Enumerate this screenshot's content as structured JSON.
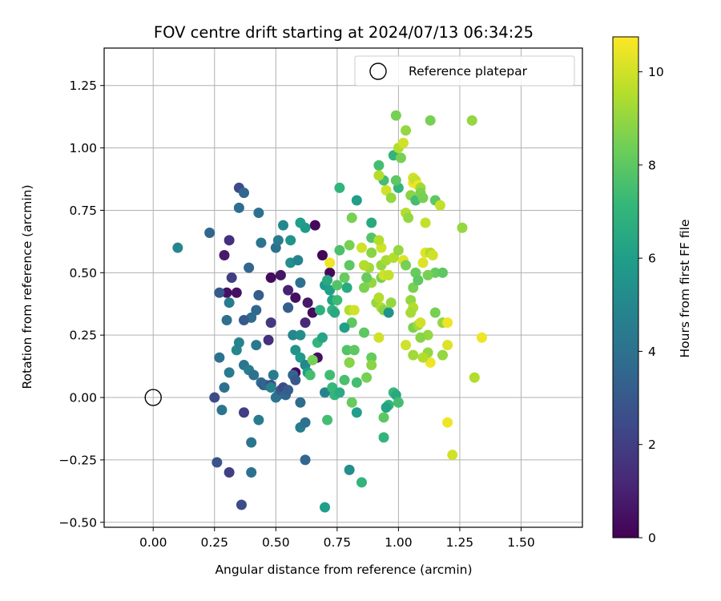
{
  "chart_data": {
    "type": "scatter",
    "title": "FOV centre drift starting at 2024/07/13 06:34:25",
    "xlabel": "Angular distance from reference (arcmin)",
    "ylabel": "Rotation from reference (arcmin)",
    "xlim": [
      -0.2,
      1.75
    ],
    "ylim": [
      -0.52,
      1.4
    ],
    "xticks": [
      0.0,
      0.25,
      0.5,
      0.75,
      1.0,
      1.25,
      1.5
    ],
    "xtick_labels": [
      "0.00",
      "0.25",
      "0.50",
      "0.75",
      "1.00",
      "1.25",
      "1.50"
    ],
    "yticks": [
      -0.5,
      -0.25,
      0.0,
      0.25,
      0.5,
      0.75,
      1.0,
      1.25
    ],
    "ytick_labels": [
      "−0.50",
      "−0.25",
      "0.00",
      "0.25",
      "0.50",
      "0.75",
      "1.00",
      "1.25"
    ],
    "grid": true,
    "legend": {
      "position": "top-right",
      "label": "Reference platepar"
    },
    "reference_point": {
      "x": 0.0,
      "y": 0.0
    },
    "colorbar": {
      "label": "Hours from first FF file",
      "colormap": "viridis",
      "min": 0,
      "max": 10.75,
      "ticks": [
        0,
        2,
        4,
        6,
        8,
        10
      ],
      "tick_labels": [
        "0",
        "2",
        "4",
        "6",
        "8",
        "10"
      ]
    },
    "colormap_stops": [
      "#440154",
      "#482878",
      "#3e4989",
      "#31688e",
      "#26828e",
      "#1f9e89",
      "#35b779",
      "#6ece58",
      "#b5de2b",
      "#fde725"
    ],
    "points": [
      [
        0.34,
        0.42,
        0.5
      ],
      [
        0.35,
        0.84,
        2.5
      ],
      [
        0.37,
        0.82,
        3.5
      ],
      [
        0.31,
        0.63,
        1.5
      ],
      [
        0.29,
        0.57,
        0.8
      ],
      [
        0.32,
        0.48,
        2.0
      ],
      [
        0.3,
        0.42,
        0.5
      ],
      [
        0.48,
        0.48,
        0.3
      ],
      [
        0.52,
        0.49,
        0.6
      ],
      [
        0.55,
        0.43,
        1.0
      ],
      [
        0.58,
        0.4,
        0.4
      ],
      [
        0.63,
        0.38,
        0.7
      ],
      [
        0.65,
        0.34,
        0.3
      ],
      [
        0.66,
        0.69,
        0.2
      ],
      [
        0.69,
        0.57,
        0.1
      ],
      [
        0.72,
        0.5,
        0.2
      ],
      [
        0.67,
        0.16,
        0.4
      ],
      [
        0.58,
        0.1,
        0.3
      ],
      [
        0.62,
        0.3,
        1.2
      ],
      [
        0.47,
        0.23,
        1.5
      ],
      [
        0.48,
        0.3,
        1.8
      ],
      [
        0.37,
        -0.06,
        2.0
      ],
      [
        0.31,
        -0.3,
        2.0
      ],
      [
        0.25,
        0.0,
        2.5
      ],
      [
        0.26,
        -0.26,
        2.8
      ],
      [
        0.36,
        -0.43,
        2.5
      ],
      [
        0.27,
        0.42,
        3.0
      ],
      [
        0.23,
        0.66,
        3.5
      ],
      [
        0.35,
        0.76,
        3.8
      ],
      [
        0.43,
        0.74,
        4.0
      ],
      [
        0.44,
        0.62,
        4.2
      ],
      [
        0.39,
        0.52,
        3.5
      ],
      [
        0.43,
        0.41,
        3.2
      ],
      [
        0.42,
        0.35,
        3.6
      ],
      [
        0.4,
        0.32,
        3.8
      ],
      [
        0.37,
        0.31,
        3.0
      ],
      [
        0.3,
        0.31,
        4.0
      ],
      [
        0.31,
        0.38,
        4.5
      ],
      [
        0.27,
        0.16,
        4.0
      ],
      [
        0.28,
        -0.05,
        4.2
      ],
      [
        0.29,
        0.04,
        4.0
      ],
      [
        0.31,
        0.1,
        4.5
      ],
      [
        0.34,
        0.19,
        5.0
      ],
      [
        0.35,
        0.22,
        4.8
      ],
      [
        0.37,
        0.13,
        4.2
      ],
      [
        0.39,
        0.11,
        4.6
      ],
      [
        0.41,
        0.09,
        4.0
      ],
      [
        0.42,
        0.21,
        4.3
      ],
      [
        0.44,
        0.06,
        3.8
      ],
      [
        0.45,
        0.05,
        3.0
      ],
      [
        0.46,
        0.05,
        3.5
      ],
      [
        0.48,
        0.05,
        2.5
      ],
      [
        0.49,
        0.09,
        4.5
      ],
      [
        0.5,
        0.0,
        4.2
      ],
      [
        0.51,
        0.01,
        4.0
      ],
      [
        0.52,
        0.03,
        3.0
      ],
      [
        0.53,
        0.04,
        2.5
      ],
      [
        0.54,
        0.01,
        3.5
      ],
      [
        0.55,
        0.03,
        3.2
      ],
      [
        0.57,
        0.09,
        3.5
      ],
      [
        0.58,
        0.07,
        3.0
      ],
      [
        0.6,
        -0.02,
        3.8
      ],
      [
        0.6,
        -0.12,
        4.5
      ],
      [
        0.62,
        -0.1,
        4.0
      ],
      [
        0.62,
        -0.25,
        3.5
      ],
      [
        0.4,
        -0.18,
        4.2
      ],
      [
        0.4,
        -0.3,
        4.0
      ],
      [
        0.43,
        -0.09,
        4.5
      ],
      [
        0.48,
        0.04,
        4.8
      ],
      [
        0.5,
        0.6,
        4.0
      ],
      [
        0.51,
        0.63,
        4.5
      ],
      [
        0.53,
        0.69,
        5.0
      ],
      [
        0.56,
        0.54,
        5.3
      ],
      [
        0.56,
        0.63,
        5.5
      ],
      [
        0.59,
        0.55,
        4.8
      ],
      [
        0.6,
        0.7,
        6.0
      ],
      [
        0.62,
        0.68,
        5.8
      ],
      [
        0.6,
        0.46,
        4.0
      ],
      [
        0.55,
        0.36,
        3.8
      ],
      [
        0.57,
        0.25,
        5.0
      ],
      [
        0.6,
        0.25,
        5.3
      ],
      [
        0.58,
        0.19,
        5.5
      ],
      [
        0.6,
        0.16,
        5.8
      ],
      [
        0.62,
        0.13,
        5.0
      ],
      [
        0.63,
        0.1,
        6.0
      ],
      [
        0.64,
        0.09,
        7.5
      ],
      [
        0.65,
        0.15,
        8.5
      ],
      [
        0.67,
        0.22,
        7.0
      ],
      [
        0.68,
        0.35,
        6.8
      ],
      [
        0.69,
        0.24,
        6.3
      ],
      [
        0.7,
        0.45,
        5.8
      ],
      [
        0.71,
        0.47,
        6.5
      ],
      [
        0.72,
        0.43,
        6.0
      ],
      [
        0.73,
        0.39,
        6.2
      ],
      [
        0.73,
        0.35,
        7.0
      ],
      [
        0.74,
        0.34,
        6.5
      ],
      [
        0.75,
        0.39,
        7.3
      ],
      [
        0.75,
        0.45,
        7.8
      ],
      [
        0.76,
        0.59,
        7.6
      ],
      [
        0.76,
        0.84,
        7.0
      ],
      [
        0.72,
        0.54,
        10.5
      ],
      [
        0.8,
        0.53,
        8.0
      ],
      [
        0.8,
        0.61,
        8.5
      ],
      [
        0.81,
        0.72,
        8.5
      ],
      [
        0.83,
        0.79,
        6.0
      ],
      [
        0.78,
        0.48,
        8.2
      ],
      [
        0.79,
        0.44,
        6.5
      ],
      [
        0.8,
        0.35,
        9.5
      ],
      [
        0.81,
        0.3,
        8.0
      ],
      [
        0.82,
        0.35,
        10.0
      ],
      [
        0.78,
        0.28,
        6.0
      ],
      [
        0.79,
        0.19,
        7.8
      ],
      [
        0.82,
        0.19,
        8.0
      ],
      [
        0.8,
        0.14,
        7.0
      ],
      [
        0.8,
        0.14,
        8.8
      ],
      [
        0.78,
        0.07,
        7.6
      ],
      [
        0.72,
        0.09,
        7.4
      ],
      [
        0.7,
        0.02,
        4.8
      ],
      [
        0.73,
        0.04,
        7.2
      ],
      [
        0.74,
        0.01,
        7.0
      ],
      [
        0.76,
        0.02,
        6.6
      ],
      [
        0.71,
        -0.09,
        7.5
      ],
      [
        0.81,
        -0.02,
        8.2
      ],
      [
        0.83,
        -0.06,
        6.0
      ],
      [
        0.8,
        -0.29,
        5.3
      ],
      [
        0.85,
        -0.34,
        7.0
      ],
      [
        0.7,
        -0.44,
        6.0
      ],
      [
        0.83,
        0.06,
        7.5
      ],
      [
        0.86,
        0.26,
        8.0
      ],
      [
        0.87,
        0.08,
        8.5
      ],
      [
        0.89,
        0.16,
        8.2
      ],
      [
        0.89,
        0.13,
        8.8
      ],
      [
        0.91,
        0.38,
        9.0
      ],
      [
        0.92,
        0.4,
        9.5
      ],
      [
        0.93,
        0.36,
        9.5
      ],
      [
        0.94,
        0.35,
        8.8
      ],
      [
        0.96,
        0.34,
        5.5
      ],
      [
        0.92,
        0.24,
        10.0
      ],
      [
        0.89,
        0.46,
        9.0
      ],
      [
        0.88,
        0.52,
        9.2
      ],
      [
        0.86,
        0.53,
        9.5
      ],
      [
        0.87,
        0.48,
        8.2
      ],
      [
        0.85,
        0.6,
        10.0
      ],
      [
        0.86,
        0.44,
        8.6
      ],
      [
        0.89,
        0.58,
        8.8
      ],
      [
        0.89,
        0.64,
        7.8
      ],
      [
        0.89,
        0.7,
        6.5
      ],
      [
        0.93,
        0.6,
        10.0
      ],
      [
        0.92,
        0.63,
        9.5
      ],
      [
        0.93,
        0.53,
        9.0
      ],
      [
        0.95,
        0.55,
        9.3
      ],
      [
        0.93,
        0.48,
        8.5
      ],
      [
        0.94,
        0.49,
        10.0
      ],
      [
        0.96,
        0.49,
        9.8
      ],
      [
        0.97,
        0.38,
        9.0
      ],
      [
        0.98,
        0.02,
        7.2
      ],
      [
        0.99,
        0.01,
        6.5
      ],
      [
        1.0,
        -0.02,
        7.5
      ],
      [
        0.96,
        -0.03,
        7.0
      ],
      [
        0.95,
        -0.04,
        6.2
      ],
      [
        0.94,
        -0.08,
        8.0
      ],
      [
        0.94,
        -0.16,
        7.0
      ],
      [
        0.98,
        0.56,
        9.5
      ],
      [
        1.0,
        0.59,
        9.0
      ],
      [
        1.02,
        0.55,
        10.2
      ],
      [
        1.03,
        0.53,
        8.5
      ],
      [
        1.0,
        0.84,
        7.0
      ],
      [
        0.95,
        0.83,
        10.0
      ],
      [
        0.97,
        0.8,
        9.0
      ],
      [
        0.99,
        0.87,
        8.0
      ],
      [
        0.94,
        0.87,
        7.5
      ],
      [
        0.92,
        0.93,
        7.5
      ],
      [
        0.92,
        0.89,
        9.5
      ],
      [
        0.98,
        0.97,
        7.0
      ],
      [
        0.99,
        1.13,
        8.5
      ],
      [
        1.0,
        1.0,
        9.5
      ],
      [
        1.01,
        0.96,
        8.5
      ],
      [
        1.02,
        1.02,
        10.0
      ],
      [
        1.03,
        1.07,
        9.0
      ],
      [
        1.03,
        0.74,
        9.5
      ],
      [
        1.04,
        0.72,
        9.0
      ],
      [
        1.05,
        0.81,
        8.8
      ],
      [
        1.06,
        0.86,
        10.5
      ],
      [
        1.06,
        0.88,
        10.0
      ],
      [
        1.07,
        0.87,
        9.8
      ],
      [
        1.07,
        0.79,
        7.5
      ],
      [
        1.08,
        0.85,
        10.5
      ],
      [
        1.09,
        0.84,
        9.2
      ],
      [
        1.09,
        0.82,
        8.6
      ],
      [
        1.1,
        0.8,
        8.5
      ],
      [
        1.11,
        0.7,
        9.8
      ],
      [
        1.11,
        0.58,
        10.2
      ],
      [
        1.13,
        0.58,
        9.5
      ],
      [
        1.14,
        0.57,
        10.0
      ],
      [
        1.13,
        1.11,
        8.5
      ],
      [
        1.15,
        0.79,
        8.0
      ],
      [
        1.17,
        0.77,
        9.8
      ],
      [
        1.15,
        0.5,
        8.2
      ],
      [
        1.18,
        0.5,
        8.0
      ],
      [
        1.06,
        0.44,
        8.5
      ],
      [
        1.05,
        0.39,
        9.0
      ],
      [
        1.06,
        0.36,
        9.5
      ],
      [
        1.07,
        0.5,
        8.2
      ],
      [
        1.08,
        0.47,
        8.0
      ],
      [
        1.1,
        0.54,
        10.2
      ],
      [
        1.12,
        0.49,
        8.5
      ],
      [
        1.05,
        0.34,
        9.3
      ],
      [
        1.06,
        0.28,
        8.6
      ],
      [
        1.08,
        0.29,
        9.2
      ],
      [
        1.09,
        0.3,
        10.0
      ],
      [
        1.12,
        0.25,
        9.0
      ],
      [
        1.13,
        0.14,
        10.5
      ],
      [
        1.12,
        0.18,
        9.0
      ],
      [
        1.1,
        0.16,
        9.5
      ],
      [
        1.09,
        0.24,
        8.8
      ],
      [
        1.06,
        0.17,
        9.2
      ],
      [
        1.03,
        0.21,
        10.0
      ],
      [
        1.15,
        0.34,
        8.5
      ],
      [
        1.18,
        0.3,
        9.0
      ],
      [
        1.2,
        0.3,
        10.5
      ],
      [
        1.18,
        0.17,
        9.0
      ],
      [
        1.2,
        0.21,
        10.2
      ],
      [
        1.2,
        -0.1,
        10.5
      ],
      [
        1.22,
        -0.23,
        10.0
      ],
      [
        1.26,
        0.68,
        9.0
      ],
      [
        1.3,
        1.11,
        9.0
      ],
      [
        1.31,
        0.08,
        9.5
      ],
      [
        1.34,
        0.24,
        10.5
      ],
      [
        0.1,
        0.6,
        5.0
      ],
      [
        0.55,
        0.36,
        3.2
      ]
    ]
  }
}
